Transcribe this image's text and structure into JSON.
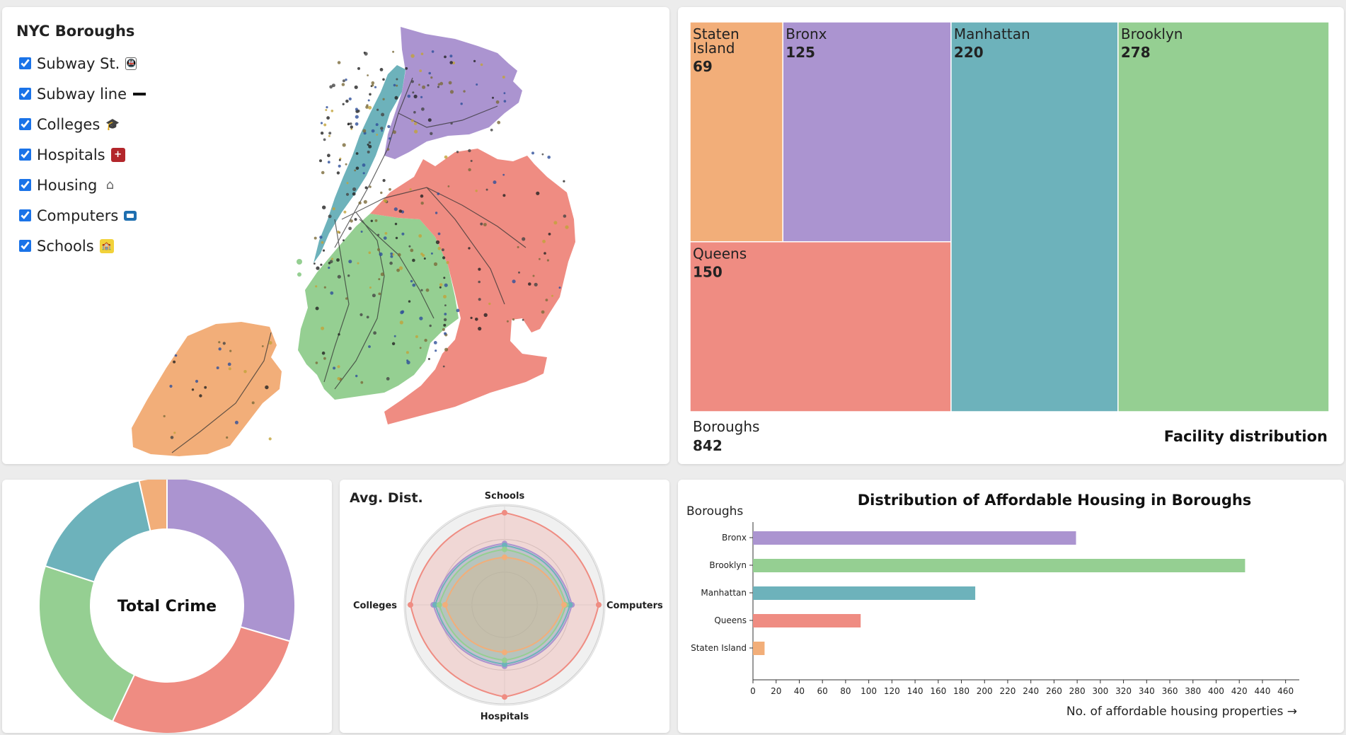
{
  "map": {
    "title": "NYC Boroughs",
    "layers": [
      {
        "label": "Subway St.",
        "checked": true,
        "icon": "subway-station-icon"
      },
      {
        "label": "Subway line",
        "checked": true,
        "icon": "subway-line-icon"
      },
      {
        "label": "Colleges",
        "checked": true,
        "icon": "graduation-cap-icon"
      },
      {
        "label": "Hospitals",
        "checked": true,
        "icon": "hospital-icon"
      },
      {
        "label": "Housing",
        "checked": true,
        "icon": "house-icon"
      },
      {
        "label": "Computers",
        "checked": true,
        "icon": "computer-icon"
      },
      {
        "label": "Schools",
        "checked": true,
        "icon": "school-icon"
      }
    ],
    "colors": {
      "bronx": "#ab94d0",
      "manhattan": "#6db2bb",
      "queens": "#ef8c82",
      "brooklyn": "#95cf92",
      "staten_island": "#f2ae79"
    }
  },
  "treemap": {
    "title": "Facility distribution",
    "root_label": "Boroughs",
    "root_value": "842",
    "cells": [
      {
        "key": "staten",
        "label_line1": "Staten",
        "label_line2": "Island",
        "value": "69",
        "color": "#f2ae79"
      },
      {
        "key": "bronx",
        "label_line1": "Bronx",
        "label_line2": "",
        "value": "125",
        "color": "#ab94d0"
      },
      {
        "key": "manhattan",
        "label_line1": "Manhattan",
        "label_line2": "",
        "value": "220",
        "color": "#6db2bb"
      },
      {
        "key": "brooklyn",
        "label_line1": "Brooklyn",
        "label_line2": "",
        "value": "278",
        "color": "#95cf92"
      },
      {
        "key": "queens",
        "label_line1": "Queens",
        "label_line2": "",
        "value": "150",
        "color": "#ef8c82"
      }
    ]
  },
  "donut": {
    "center_label": "Total Crime"
  },
  "radar": {
    "title": "Avg. Dist.",
    "axes": [
      "Schools",
      "Computers",
      "Hospitals",
      "Colleges"
    ]
  },
  "bar": {
    "title": "Distribution of Affordable Housing in Boroughs",
    "ylabel": "Boroughs",
    "xlabel": "No. of affordable housing properties →"
  },
  "chart_data": [
    {
      "type": "treemap",
      "title": "Facility distribution",
      "root": {
        "name": "Boroughs",
        "value": 842
      },
      "categories": [
        "Staten Island",
        "Bronx",
        "Manhattan",
        "Brooklyn",
        "Queens"
      ],
      "values": [
        69,
        125,
        220,
        278,
        150
      ]
    },
    {
      "type": "pie",
      "title": "Total Crime",
      "donut": true,
      "categories": [
        "Bronx",
        "Queens",
        "Brooklyn",
        "Manhattan",
        "Staten Island"
      ],
      "values": [
        29.5,
        27.5,
        23,
        16.5,
        3.5
      ],
      "colors": [
        "#ab94d0",
        "#ef8c82",
        "#95cf92",
        "#6db2bb",
        "#f2ae79"
      ]
    },
    {
      "type": "radar",
      "title": "Avg. Dist.",
      "axes": [
        "Schools",
        "Computers",
        "Hospitals",
        "Colleges"
      ],
      "series": [
        {
          "color": "#ef8c82",
          "values": [
            0.93,
            0.95,
            0.93,
            0.95
          ]
        },
        {
          "color": "#ab94d0",
          "values": [
            0.62,
            0.68,
            0.62,
            0.72
          ]
        },
        {
          "color": "#6db2bb",
          "values": [
            0.6,
            0.66,
            0.6,
            0.7
          ]
        },
        {
          "color": "#95cf92",
          "values": [
            0.56,
            0.62,
            0.56,
            0.66
          ]
        },
        {
          "color": "#f2ae79",
          "values": [
            0.48,
            0.6,
            0.48,
            0.6
          ]
        }
      ]
    },
    {
      "type": "bar",
      "orientation": "horizontal",
      "title": "Distribution of Affordable Housing in Boroughs",
      "ylabel": "Boroughs",
      "xlabel": "No. of affordable housing properties →",
      "categories": [
        "Bronx",
        "Brooklyn",
        "Manhattan",
        "Queens",
        "Staten Island"
      ],
      "values": [
        279,
        425,
        192,
        93,
        10
      ],
      "colors": [
        "#ab94d0",
        "#95cf92",
        "#6db2bb",
        "#ef8c82",
        "#f2ae79"
      ],
      "xlim": [
        0,
        470
      ],
      "xticks": [
        0,
        20,
        40,
        60,
        80,
        100,
        120,
        140,
        160,
        180,
        200,
        220,
        240,
        260,
        280,
        300,
        320,
        340,
        360,
        380,
        400,
        420,
        440,
        460
      ]
    }
  ]
}
